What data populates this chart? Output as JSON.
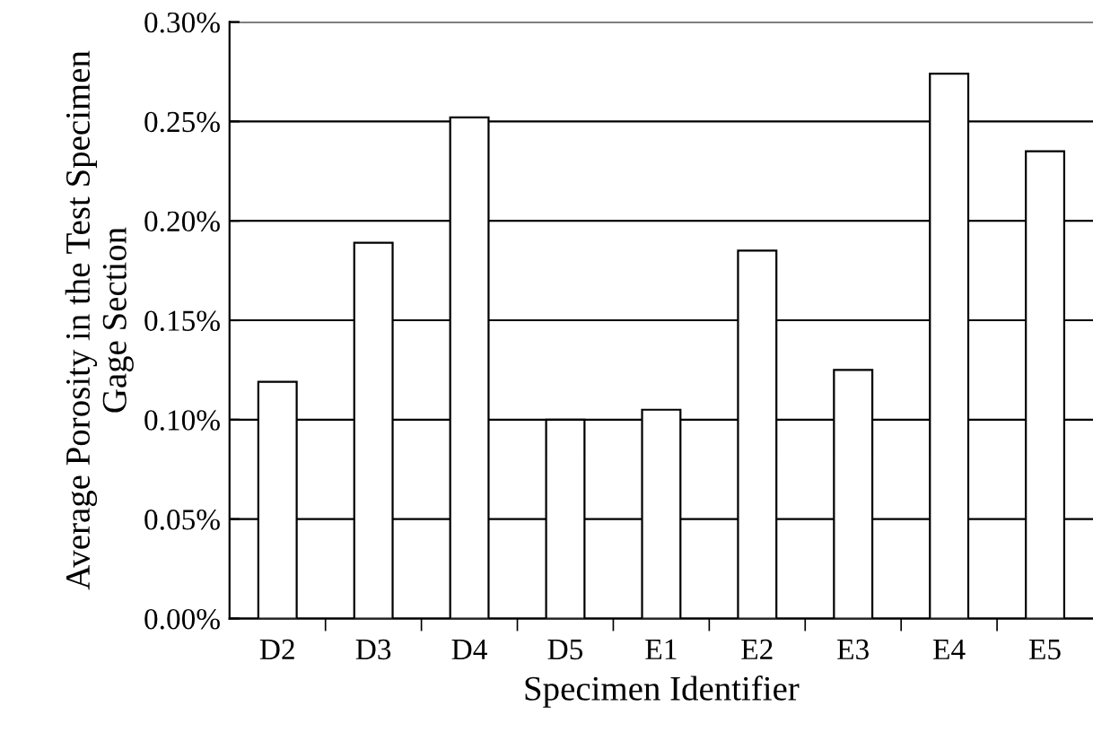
{
  "chart_data": {
    "type": "bar",
    "xlabel": "Specimen Identifier",
    "ylabel": "Average Porosity in the Test Specimen\nGage Section",
    "categories": [
      "D2",
      "D3",
      "D4",
      "D5",
      "E1",
      "E2",
      "E3",
      "E4",
      "E5"
    ],
    "values": [
      0.119,
      0.189,
      0.252,
      0.1,
      0.105,
      0.185,
      0.125,
      0.274,
      0.235
    ],
    "color": "#ffffff",
    "ylim": [
      0,
      0.3
    ],
    "yticks": [
      {
        "value": 0,
        "label": "0.00%"
      },
      {
        "value": 0.05,
        "label": "0.05%"
      },
      {
        "value": 0.1,
        "label": "0.10%"
      },
      {
        "value": 0.15,
        "label": "0.15%"
      },
      {
        "value": 0.2,
        "label": "0.20%"
      },
      {
        "value": 0.25,
        "label": "0.25%"
      },
      {
        "value": 0.3,
        "label": "0.30%"
      }
    ],
    "grid": "y",
    "legend": false
  }
}
